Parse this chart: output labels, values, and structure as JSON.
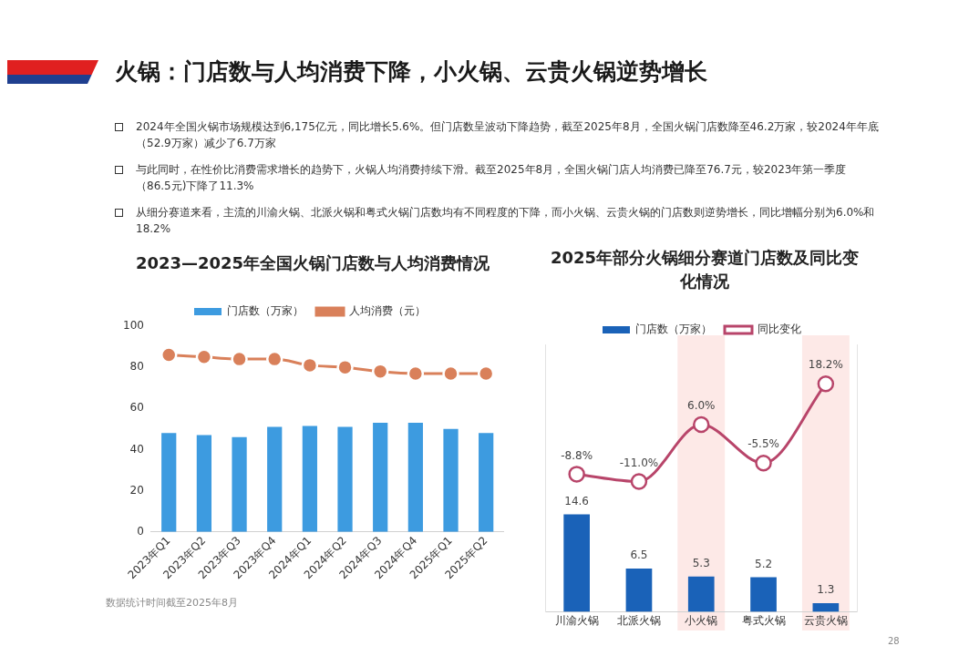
{
  "chart_data": [
    {
      "type": "other",
      "title": "火锅：门店数与人均消费下降，小火锅、云贵火锅逆势增长",
      "annotations": [
        "2024年全国火锅市场规模达到6,175亿元，同比增长5.6%。但门店数呈波动下降趋势，截至2025年8月，全国火锅门店数降至46.2万家，较2024年年底（52.9万家）减少了6.7万家",
        "与此同时，在性价比消费需求增长的趋势下，火锅人均消费持续下滑。截至2025年8月，全国火锅门店人均消费已降至76.7元，较2023年第一季度（86.5元)下降了11.3%",
        "从细分赛道来看，主流的川渝火锅、北派火锅和粤式火锅门店数均有不同程度的下降，而小火锅、云贵火锅的门店数则逆势增长，同比增幅分别为6.0%和18.2%",
        "数据统计时间截至2025年8月",
        "28"
      ]
    },
    {
      "type": "bar",
      "title": "2023—2025年全国火锅门店数与人均消费情况",
      "categories": [
        "2023年Q1",
        "2023年Q2",
        "2023年Q3",
        "2023年Q4",
        "2024年Q1",
        "2024年Q2",
        "2024年Q3",
        "2024年Q4",
        "2025年Q1",
        "2025年Q2"
      ],
      "series": [
        {
          "name": "门店数（万家）",
          "color": "#3d9be0",
          "values": [
            48,
            47,
            46,
            51,
            51.5,
            51,
            53,
            53,
            50,
            48
          ]
        },
        {
          "name": "人均消费（元）",
          "type": "line",
          "color": "#d9805a",
          "values": [
            86,
            85,
            84,
            84,
            81,
            80,
            78,
            77,
            77,
            77
          ]
        }
      ],
      "ylim": [
        0,
        100
      ],
      "yticks": [
        0,
        20,
        40,
        60,
        80,
        100
      ],
      "grid": false,
      "legend": "top",
      "marker": "circle"
    },
    {
      "type": "bar",
      "title": "2025年部分火锅细分赛道门店数及同比变化情况",
      "categories": [
        "川渝火锅",
        "北派火锅",
        "小火锅",
        "粤式火锅",
        "云贵火锅"
      ],
      "series": [
        {
          "name": "门店数（万家）",
          "color": "#1a62b8",
          "values": [
            14.6,
            6.5,
            5.3,
            5.2,
            1.3
          ],
          "value_labels": [
            "14.6",
            "6.5",
            "5.3",
            "5.2",
            "1.3"
          ]
        },
        {
          "name": "同比变化",
          "type": "line",
          "axis": "y2",
          "color": "#b8456a",
          "values": [
            -8.8,
            -11.0,
            6.0,
            -5.5,
            18.2
          ],
          "value_labels": [
            "-8.8%",
            "-11.0%",
            "6.0%",
            "-5.5%",
            "18.2%"
          ]
        }
      ],
      "ylim": [
        0,
        40
      ],
      "y2lim": [
        -50,
        30
      ],
      "tick_labels": "x",
      "grid": false,
      "legend": "top",
      "marker": "circle",
      "bands": [
        {
          "axis": "x",
          "from": "小火锅",
          "to": "小火锅",
          "color": "#fde9e7"
        },
        {
          "axis": "x",
          "from": "云贵火锅",
          "to": "云贵火锅",
          "color": "#fde9e7"
        }
      ]
    }
  ]
}
